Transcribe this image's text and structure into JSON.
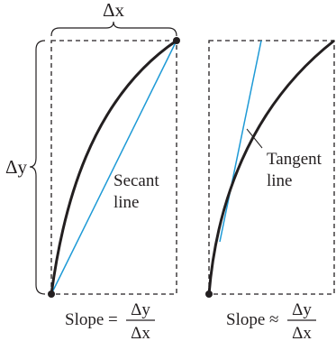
{
  "left_panel": {
    "dx_label": "Δx",
    "dy_label": "Δy",
    "secant_label": [
      "Secant",
      "line"
    ],
    "slope_prefix": "Slope =",
    "frac_num": "Δy",
    "frac_den": "Δx"
  },
  "right_panel": {
    "tangent_label": [
      "Tangent",
      "line"
    ],
    "slope_prefix": "Slope ≈",
    "frac_num": "Δy",
    "frac_den": "Δx"
  },
  "colors": {
    "curve": "#231f20",
    "secant": "#1e9ad6",
    "tangent": "#1e9ad6",
    "box": "#231f20"
  }
}
